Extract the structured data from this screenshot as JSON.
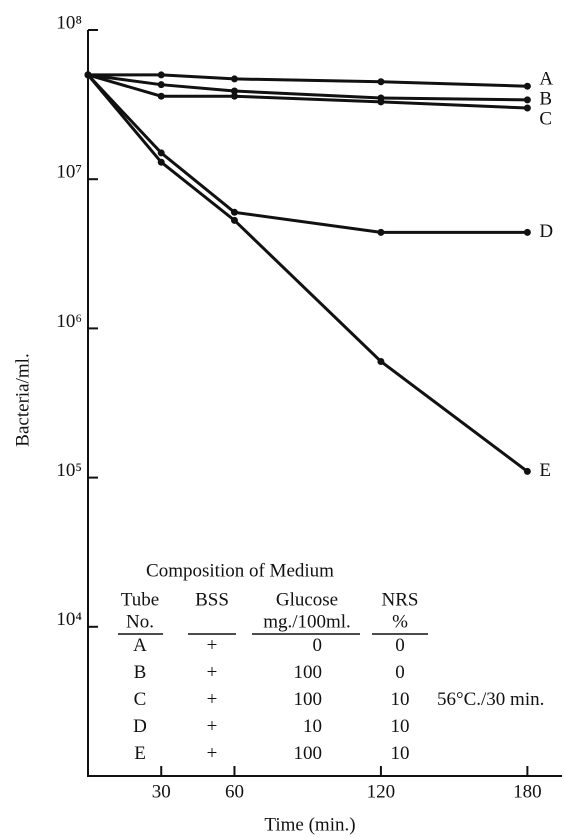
{
  "chart_data": {
    "type": "line",
    "y_label": "Bacteria/ml.",
    "x_label": "Time (min.)",
    "log_y": true,
    "x": [
      0,
      30,
      60,
      120,
      180
    ],
    "xlim": [
      0,
      195
    ],
    "xticks": [
      30,
      60,
      120,
      180
    ],
    "ylim": [
      1000,
      100000000
    ],
    "yticks": [
      {
        "value": 10000,
        "label": "10⁴"
      },
      {
        "value": 100000,
        "label": "10⁵"
      },
      {
        "value": 1000000,
        "label": "10⁶"
      },
      {
        "value": 10000000,
        "label": "10⁷"
      },
      {
        "value": 100000000,
        "label": "10⁸"
      }
    ],
    "series": [
      {
        "name": "A",
        "color": "#111111",
        "values": [
          50000000,
          50000000,
          47000000,
          45000000,
          42000000
        ]
      },
      {
        "name": "B",
        "color": "#111111",
        "values": [
          50000000,
          43000000,
          39000000,
          35000000,
          34000000
        ]
      },
      {
        "name": "C",
        "color": "#111111",
        "values": [
          50000000,
          36000000,
          36000000,
          33000000,
          30000000
        ]
      },
      {
        "name": "D",
        "color": "#111111",
        "values": [
          50000000,
          15000000,
          6000000,
          4400000,
          4400000
        ]
      },
      {
        "name": "E",
        "color": "#111111",
        "values": [
          50000000,
          13000000,
          5300000,
          600000,
          110000
        ]
      }
    ],
    "table": {
      "title": "Composition of Medium",
      "headers": [
        [
          "Tube",
          "No."
        ],
        [
          "BSS",
          ""
        ],
        [
          "Glucose",
          "mg./100ml."
        ],
        [
          "NRS",
          "%"
        ]
      ],
      "rows": [
        [
          "A",
          "+",
          "0",
          "0"
        ],
        [
          "B",
          "+",
          "100",
          "0"
        ],
        [
          "C",
          "+",
          "100",
          "10"
        ],
        [
          "D",
          "+",
          "10",
          "10"
        ],
        [
          "E",
          "+",
          "100",
          "10"
        ]
      ],
      "note": "56°C./30 min."
    }
  }
}
